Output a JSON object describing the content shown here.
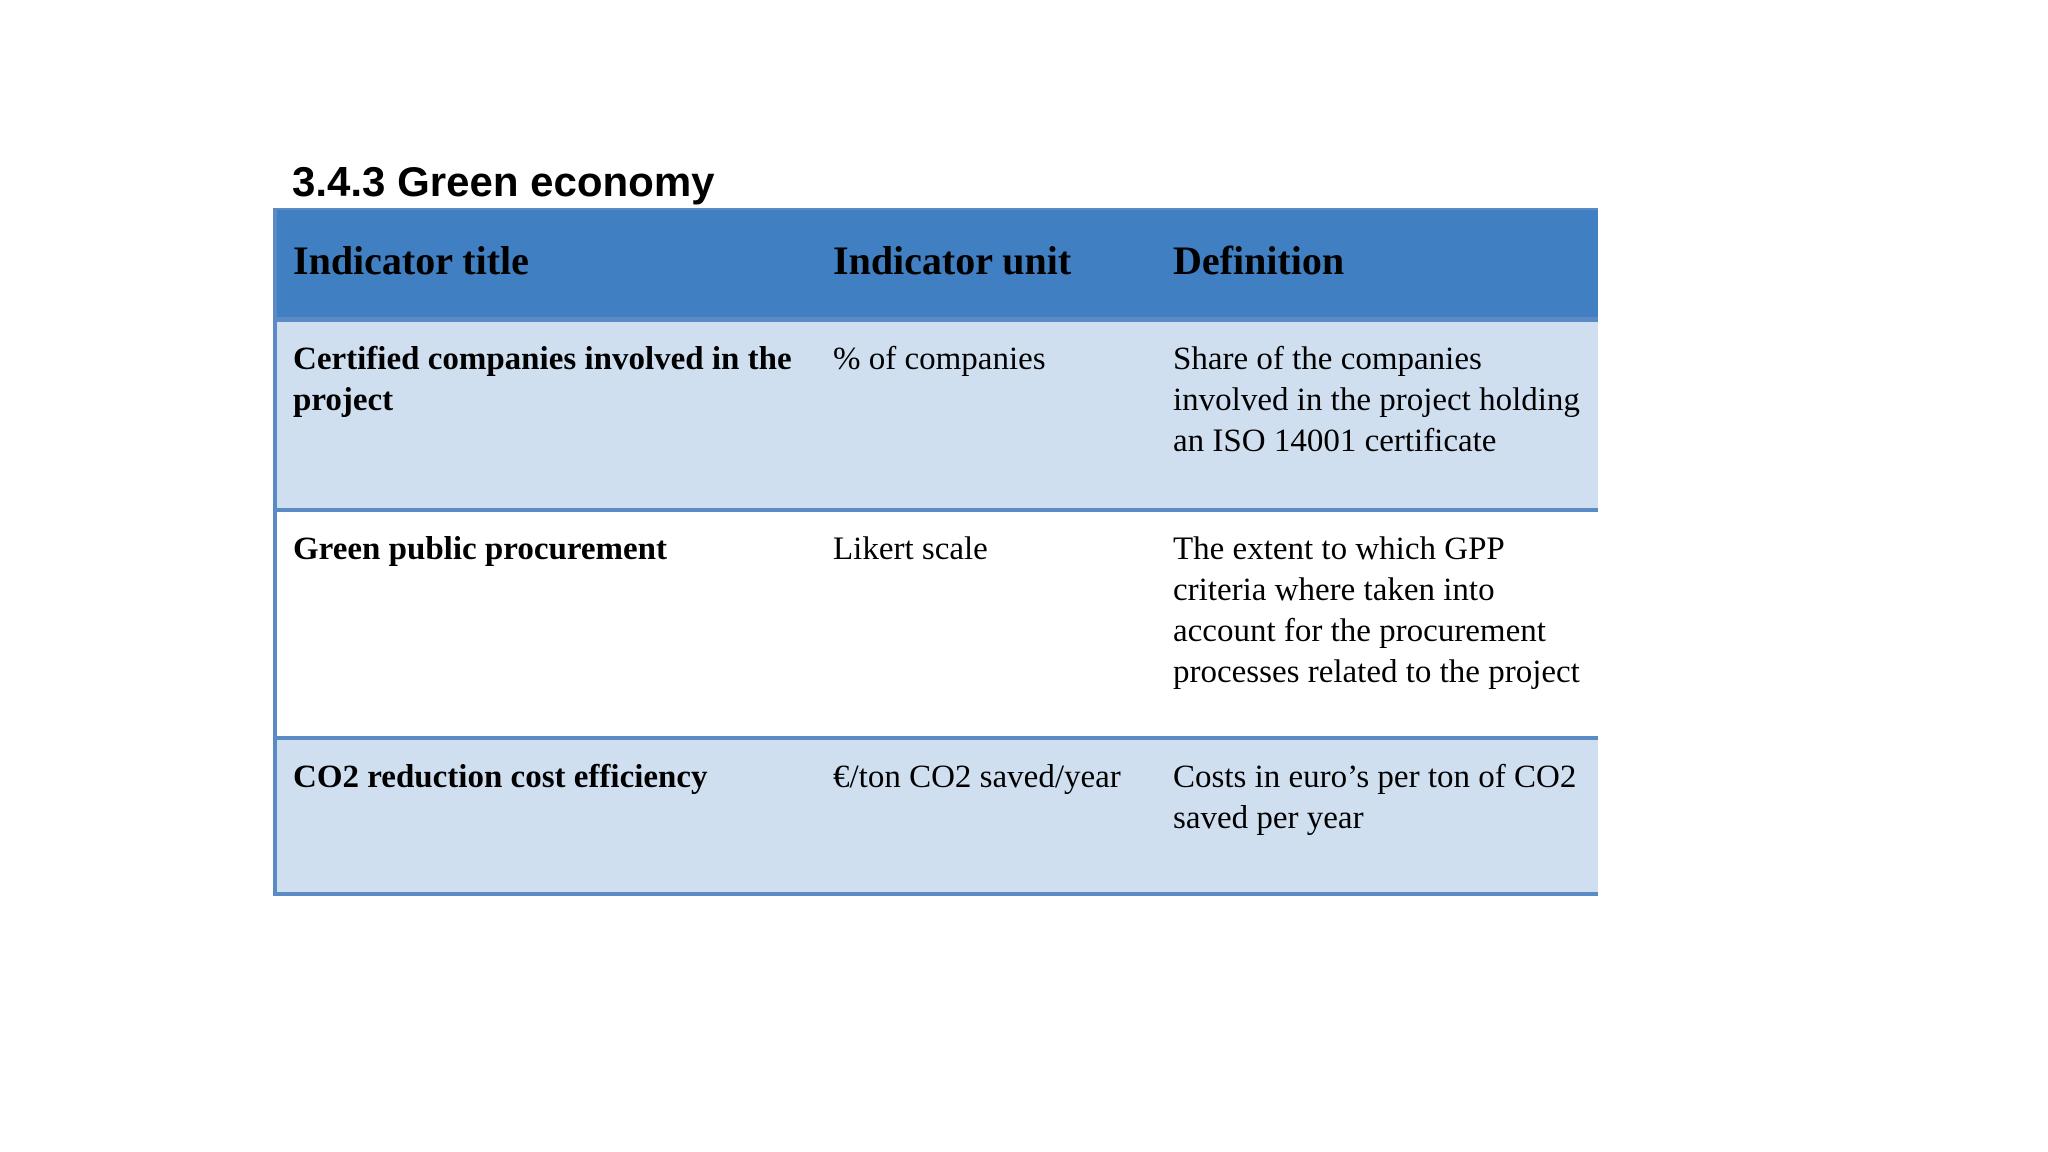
{
  "section": {
    "heading": "3.4.3 Green economy"
  },
  "table": {
    "headers": {
      "col1": "Indicator title",
      "col2": "Indicator unit",
      "col3": "Definition"
    },
    "rows": [
      {
        "title": "Certified companies involved in the project",
        "unit": "% of companies",
        "definition": "Share of the companies involved in the project holding an ISO 14001 certificate"
      },
      {
        "title": "Green public procurement",
        "unit": "Likert scale",
        "definition": "The extent to which GPP criteria where taken into account for  the procurement processes related to the project"
      },
      {
        "title": "CO2 reduction cost efficiency",
        "unit": "€/ton CO2 saved/year",
        "definition": "Costs in euro’s per ton of CO2 saved per year"
      }
    ]
  },
  "colors": {
    "header_bg": "#3f7fc2",
    "row_shade": "#d0dff0",
    "border": "#5b8ac4"
  }
}
